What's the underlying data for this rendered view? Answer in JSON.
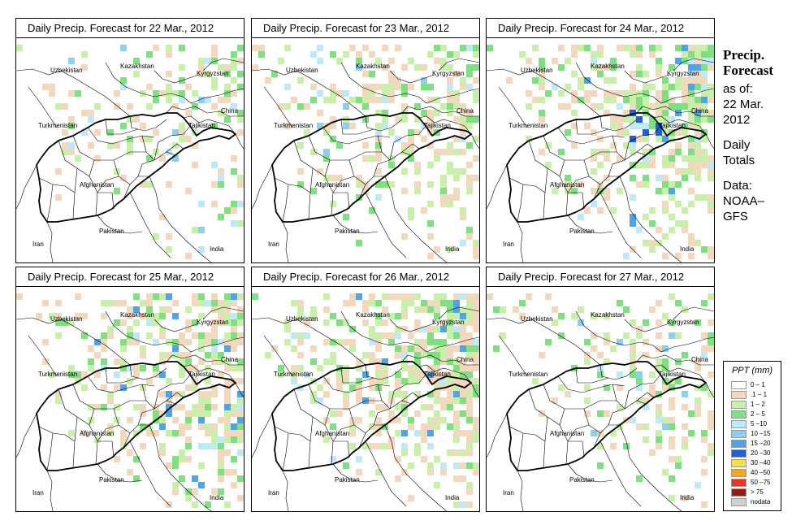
{
  "panels": [
    {
      "title": "Daily Precip. Forecast for  22 Mar., 2012",
      "intensity": 0.35
    },
    {
      "title": "Daily Precip. Forecast for  23 Mar., 2012",
      "intensity": 0.65
    },
    {
      "title": "Daily Precip. Forecast for  24 Mar., 2012",
      "intensity": 0.8
    },
    {
      "title": "Daily Precip. Forecast for  25 Mar., 2012",
      "intensity": 0.75
    },
    {
      "title": "Daily Precip. Forecast for  26 Mar., 2012",
      "intensity": 0.9
    },
    {
      "title": "Daily Precip. Forecast for  27 Mar., 2012",
      "intensity": 0.4
    }
  ],
  "map_labels": {
    "uzbekistan": "Uzbekistan",
    "kazakhstan": "Kazakhstan",
    "kyrgyzstan": "Kyrgyzstan",
    "china": "China",
    "tajikistan": "Tajikistan",
    "turkmenistan": "Turkmenistan",
    "afghanistan": "Afghanistan",
    "iran": "Iran",
    "pakistan": "Pakistan",
    "india": "India"
  },
  "side": {
    "title_line1": "Precip.",
    "title_line2": "Forecast",
    "asof": "as of:",
    "date_line1": "22 Mar.",
    "date_line2": "2012",
    "daily": "Daily",
    "totals": "Totals",
    "data": "Data:",
    "source_line1": "NOAA–",
    "source_line2": "GFS"
  },
  "legend": {
    "title": "PPT (mm)",
    "items": [
      {
        "label": "0 – 1",
        "color": "#ffffff"
      },
      {
        "label": ".1 – 1",
        "color": "#f2d9bd"
      },
      {
        "label": "1 – 2",
        "color": "#c8f0a8"
      },
      {
        "label": "2 – 5",
        "color": "#7fe07f"
      },
      {
        "label": "5 –10",
        "color": "#bfe8f8"
      },
      {
        "label": "10 –15",
        "color": "#8ecff0"
      },
      {
        "label": "15 –20",
        "color": "#4fa3e8"
      },
      {
        "label": "20 –30",
        "color": "#1f5fd8"
      },
      {
        "label": "30 –40",
        "color": "#f4e04a"
      },
      {
        "label": "40 –50",
        "color": "#f5a81e"
      },
      {
        "label": "50 –75",
        "color": "#e8351f"
      },
      {
        "label": "> 75",
        "color": "#9c1a14"
      },
      {
        "label": "nodata",
        "color": "#d0d0d0"
      }
    ]
  }
}
